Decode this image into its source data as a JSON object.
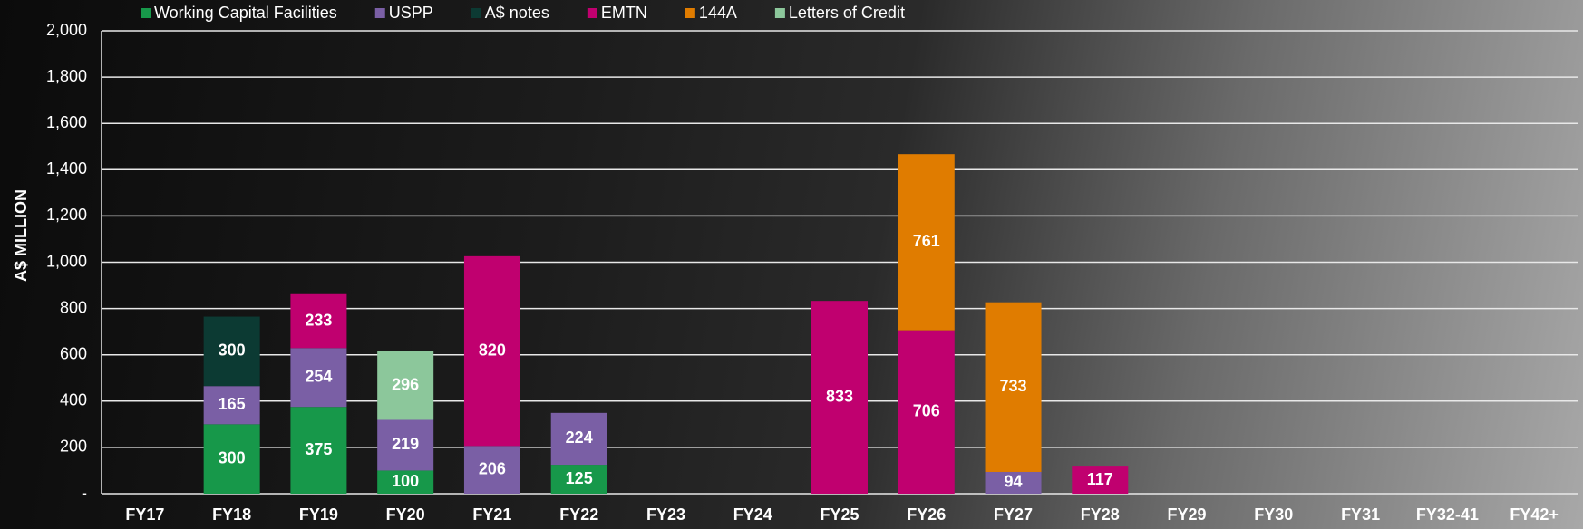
{
  "chart_data": {
    "type": "stacked_bar",
    "y_label": "A$ MILLION",
    "categories": [
      "FY17",
      "FY18",
      "FY19",
      "FY20",
      "FY21",
      "FY22",
      "FY23",
      "FY24",
      "FY25",
      "FY26",
      "FY27",
      "FY28",
      "FY29",
      "FY30",
      "FY31",
      "FY32-41",
      "FY42+"
    ],
    "series": [
      {
        "name": "Working Capital Facilities",
        "color": "#17984a",
        "values": [
          null,
          300,
          375,
          100,
          null,
          125,
          null,
          null,
          null,
          null,
          null,
          null,
          null,
          null,
          null,
          null,
          null
        ]
      },
      {
        "name": "USPP",
        "color": "#7a5fa5",
        "values": [
          null,
          165,
          254,
          219,
          206,
          224,
          null,
          null,
          null,
          null,
          94,
          null,
          null,
          null,
          null,
          null,
          null
        ]
      },
      {
        "name": "A$ notes",
        "color": "#0c3a33",
        "values": [
          null,
          300,
          null,
          null,
          null,
          null,
          null,
          null,
          null,
          null,
          null,
          null,
          null,
          null,
          null,
          null,
          null
        ]
      },
      {
        "name": "EMTN",
        "color": "#c0006f",
        "values": [
          null,
          null,
          233,
          null,
          820,
          null,
          null,
          null,
          833,
          706,
          null,
          117,
          null,
          null,
          null,
          null,
          null
        ]
      },
      {
        "name": "144A",
        "color": "#e07c00",
        "values": [
          null,
          null,
          null,
          null,
          null,
          null,
          null,
          null,
          null,
          761,
          733,
          null,
          null,
          null,
          null,
          null,
          null
        ]
      },
      {
        "name": "Letters of Credit",
        "color": "#8cc79b",
        "values": [
          null,
          null,
          null,
          296,
          null,
          null,
          null,
          null,
          null,
          null,
          null,
          null,
          null,
          null,
          null,
          null,
          null
        ]
      }
    ],
    "ylim": [
      0,
      2000
    ],
    "yticks": [
      {
        "value": 0,
        "label": "-"
      },
      200,
      400,
      600,
      800,
      {
        "value": 1000,
        "label": "1,000"
      },
      {
        "value": 1200,
        "label": "1,200"
      },
      {
        "value": 1400,
        "label": "1,400"
      },
      {
        "value": 1600,
        "label": "1,600"
      },
      {
        "value": 1800,
        "label": "1,800"
      },
      {
        "value": 2000,
        "label": "2,000"
      }
    ],
    "grid": true
  }
}
